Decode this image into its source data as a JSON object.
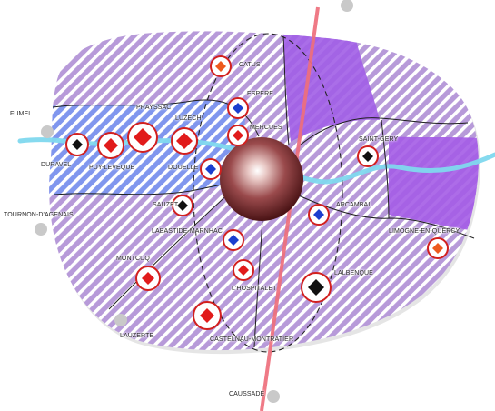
{
  "colors": {
    "zone_purple": "#b69ad8",
    "zone_blue": "#7f97ee",
    "hatch_white": "#ffffff",
    "dense_violet": "#a45ce6",
    "river_cyan": "#7fd9ee",
    "highway_red": "#ee6f7c",
    "center_sphere": "#8a2f34",
    "ring_red": "#d2201f",
    "diamond_red": "#e11b1b",
    "diamond_blue": "#1b3fcf",
    "diamond_orange": "#ee5a1e",
    "diamond_black": "#111111",
    "outside_dot": "#c9c9c9"
  },
  "towns": [
    {
      "id": "catus",
      "name": "CATUS",
      "marker": "orange"
    },
    {
      "id": "espere",
      "name": "ESPERE",
      "marker": "blue"
    },
    {
      "id": "praysac",
      "name": "PRAYSSAC",
      "marker": "red"
    },
    {
      "id": "luzech",
      "name": "LUZECH",
      "marker": "red"
    },
    {
      "id": "mercues",
      "name": "MERCUES",
      "marker": "red"
    },
    {
      "id": "fumel",
      "name": "FUMEL",
      "marker": "none"
    },
    {
      "id": "duravel",
      "name": "DURAVEL",
      "marker": "black"
    },
    {
      "id": "puylevque",
      "name": "PUY-LEVEQUE",
      "marker": "red"
    },
    {
      "id": "douelle",
      "name": "DOUELLE",
      "marker": "blue"
    },
    {
      "id": "saintgery",
      "name": "SAINT-GERY",
      "marker": "black"
    },
    {
      "id": "tournon",
      "name": "TOURNON-D'AGENAIS",
      "marker": "none"
    },
    {
      "id": "sauzet",
      "name": "SAUZET",
      "marker": "black"
    },
    {
      "id": "arcambal",
      "name": "ARCAMBAL",
      "marker": "blue"
    },
    {
      "id": "labastide",
      "name": "LABASTIDE-MARNHAC",
      "marker": "blue"
    },
    {
      "id": "limogne",
      "name": "LIMOGNE-EN-QUERCY",
      "marker": "orange"
    },
    {
      "id": "montcuq",
      "name": "MONTCUQ",
      "marker": "red"
    },
    {
      "id": "lalbenque",
      "name": "LALBENQUE",
      "marker": "black"
    },
    {
      "id": "lhospitalet",
      "name": "L'HOSPITALET",
      "marker": "red"
    },
    {
      "id": "lauzerte",
      "name": "LAUZERTE",
      "marker": "none"
    },
    {
      "id": "castelnau",
      "name": "CASTELNAU-MONTRATIER",
      "marker": "red"
    },
    {
      "id": "caussade",
      "name": "CAUSSADE",
      "marker": "none"
    }
  ]
}
